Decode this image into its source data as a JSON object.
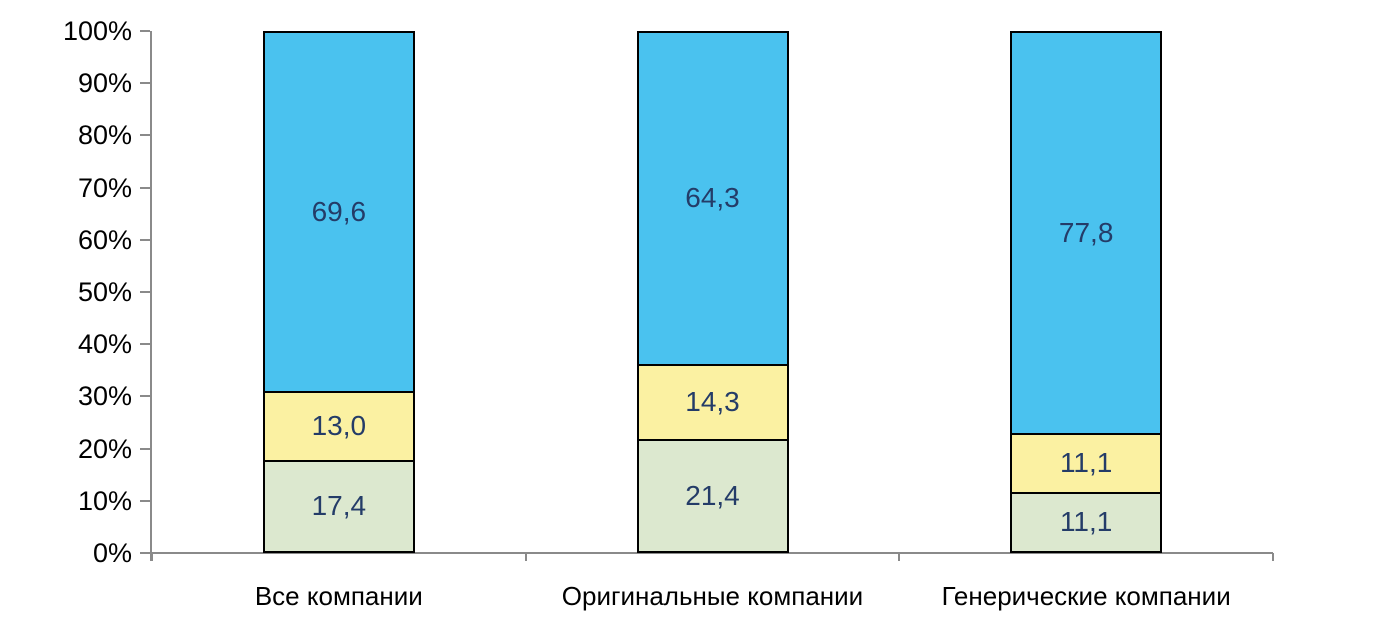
{
  "chart_data": {
    "type": "bar",
    "variant": "stacked-percentage-column",
    "title": "",
    "legend": "none",
    "grid": false,
    "categories": [
      "Все компании",
      "Оригинальные компании",
      "Генерические компании"
    ],
    "series": [
      {
        "name": "segment-bottom-green",
        "color": "#DCE8CF",
        "values": [
          17.4,
          21.4,
          11.1
        ],
        "labels": [
          "17,4",
          "21,4",
          "11,1"
        ]
      },
      {
        "name": "segment-middle-yellow",
        "color": "#FBF1A2",
        "values": [
          13.0,
          14.3,
          11.1
        ],
        "labels": [
          "13,0",
          "14,3",
          "11,1"
        ]
      },
      {
        "name": "segment-top-blue",
        "color": "#4AC2EF",
        "values": [
          69.6,
          64.3,
          77.8
        ],
        "labels": [
          "69,6",
          "64,3",
          "77,8"
        ]
      }
    ],
    "y_axis": {
      "min": 0,
      "max": 100,
      "tick_step": 10,
      "tick_labels": [
        "0%",
        "10%",
        "20%",
        "30%",
        "40%",
        "50%",
        "60%",
        "70%",
        "80%",
        "90%",
        "100%"
      ]
    },
    "x_axis": {
      "tick_labels": [
        "Все компании",
        "Оригинальные компании",
        "Генерические компании"
      ]
    },
    "colors": {
      "data_label": "#243C68",
      "bar_border": "#000000",
      "axis": "#8A8A8A",
      "axis_text": "#000000",
      "background": "#FFFFFF"
    }
  }
}
